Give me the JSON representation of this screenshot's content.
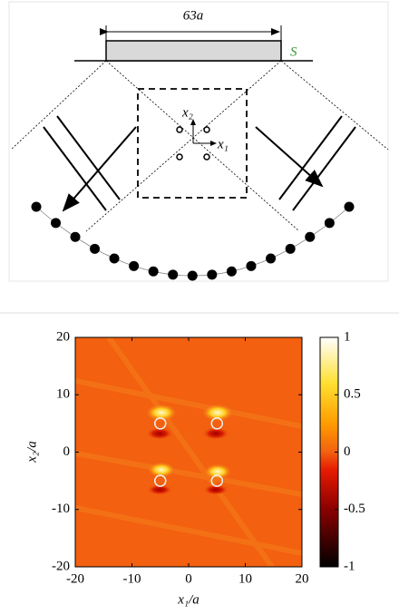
{
  "diagram": {
    "width_label": "63a",
    "surface_label": "S",
    "axis_x2": "x₂",
    "axis_x1": "x₁"
  },
  "chart_data": {
    "type": "heatmap",
    "xlabel": "x₁/a",
    "ylabel": "x₂/a",
    "xlim": [
      -20,
      20
    ],
    "ylim": [
      -20,
      20
    ],
    "xticks": [
      -20,
      -10,
      0,
      10,
      20
    ],
    "yticks": [
      -20,
      -10,
      0,
      10,
      20
    ],
    "colorbar_lim": [
      -1,
      1
    ],
    "colorbar_ticks": [
      -1,
      -0.5,
      0,
      0.5,
      1
    ],
    "scatterers": {
      "x": [
        -5,
        5,
        -5,
        5
      ],
      "y": [
        5,
        5,
        -5,
        -5
      ],
      "color": "#f0f0f0"
    }
  }
}
